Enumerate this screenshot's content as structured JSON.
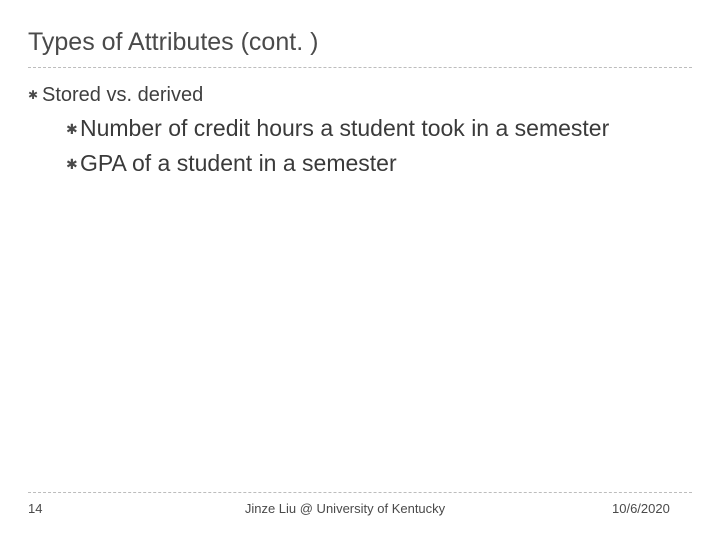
{
  "title": "Types of Attributes (cont. )",
  "bullets": {
    "lvl1": "Stored vs. derived",
    "lvl2a": "Number of credit hours a student took in a semester",
    "lvl2b": "GPA of a student in a semester"
  },
  "footer": {
    "page": "14",
    "center": "Jinze Liu @ University of Kentucky",
    "date": "10/6/2020"
  },
  "glyph": "✱"
}
